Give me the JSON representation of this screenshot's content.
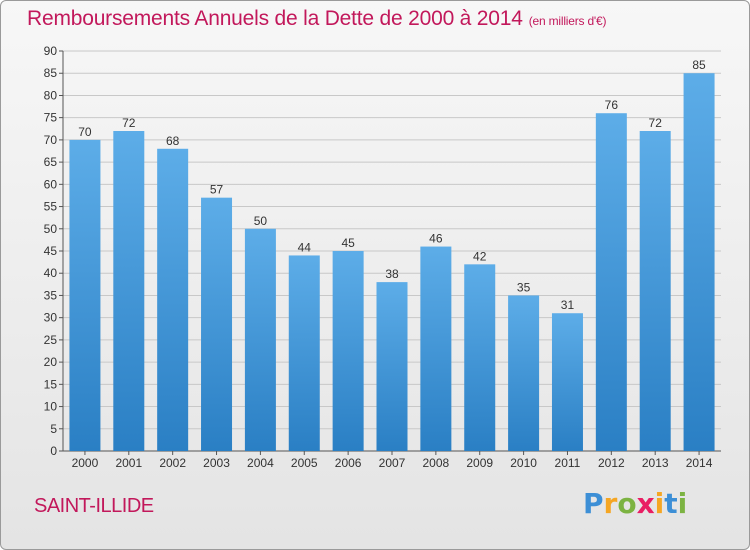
{
  "header": {
    "title": "Remboursements Annuels de la Dette de 2000 à 2014",
    "unit": "(en milliers d'€)"
  },
  "commune": "SAINT-ILLIDE",
  "logo": {
    "text": "Proxiti",
    "letters": [
      "P",
      "r",
      "o",
      "x",
      "i",
      "t",
      "i"
    ]
  },
  "chart_data": {
    "type": "bar",
    "title": "Remboursements Annuels de la Dette de 2000 à 2014",
    "subtitle": "(en milliers d'€)",
    "categories": [
      "2000",
      "2001",
      "2002",
      "2003",
      "2004",
      "2005",
      "2006",
      "2007",
      "2008",
      "2009",
      "2010",
      "2011",
      "2012",
      "2013",
      "2014"
    ],
    "values": [
      70,
      72,
      68,
      57,
      50,
      44,
      45,
      38,
      46,
      42,
      35,
      31,
      76,
      72,
      85
    ],
    "ylim": [
      0,
      90
    ],
    "yticks": [
      0,
      5,
      10,
      15,
      20,
      25,
      30,
      35,
      40,
      45,
      50,
      55,
      60,
      65,
      70,
      75,
      80,
      85,
      90
    ],
    "grid": true,
    "bar_color": "#4a9fe0",
    "accent_color": "#c2185b"
  }
}
